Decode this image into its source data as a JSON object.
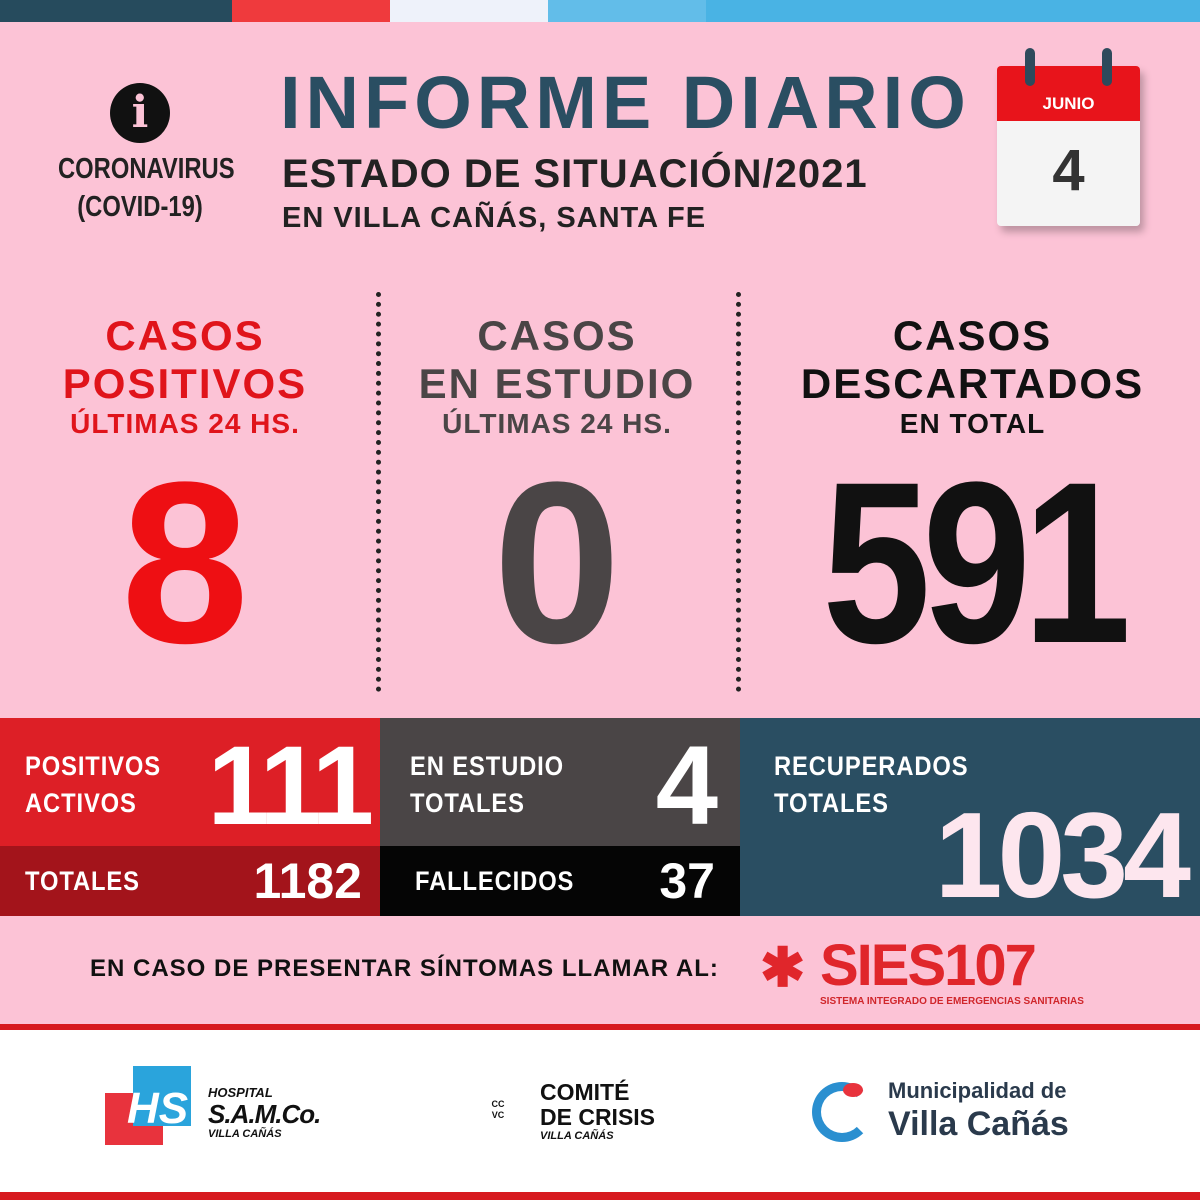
{
  "colors": {
    "top_bar": [
      "#264b5d",
      "#ef3a3d",
      "#eef2fa",
      "#62bde9",
      "#49b3e4"
    ],
    "background": "#fcc3d6",
    "red": "#e0141b",
    "dark": "#4a4546",
    "teal": "#2a4e62"
  },
  "header": {
    "info_icon": "info-icon",
    "badge_line1": "CORONAVIRUS",
    "badge_line2": "(COVID-19)",
    "title": "INFORME DIARIO",
    "subtitle": "ESTADO DE SITUACIÓN/2021",
    "location": "EN VILLA CAÑÁS, SANTA FE",
    "calendar": {
      "month": "JUNIO",
      "day": "4"
    }
  },
  "daily": [
    {
      "line1": "CASOS",
      "line2": "POSITIVOS",
      "line3": "ÚLTIMAS 24 HS.",
      "value": "8"
    },
    {
      "line1": "CASOS",
      "line2": "EN ESTUDIO",
      "line3": "ÚLTIMAS 24 HS.",
      "value": "0"
    },
    {
      "line1": "CASOS",
      "line2": "DESCARTADOS",
      "line3": "EN TOTAL",
      "value": "591"
    }
  ],
  "totals": {
    "positivos_activos": {
      "label1": "POSITIVOS",
      "label2": "ACTIVOS",
      "value": "111"
    },
    "totales": {
      "label": "TOTALES",
      "value": "1182"
    },
    "en_estudio": {
      "label1": "EN ESTUDIO",
      "label2": "TOTALES",
      "value": "4"
    },
    "fallecidos": {
      "label": "FALLECIDOS",
      "value": "37"
    },
    "recuperados": {
      "label1": "RECUPERADOS",
      "label2": "TOTALES",
      "value": "1034"
    }
  },
  "emergency": {
    "text": "EN CASO DE PRESENTAR SÍNTOMAS LLAMAR AL:",
    "logo": "SIES107",
    "logo_sub": "SISTEMA INTEGRADO DE EMERGENCIAS SANITARIAS"
  },
  "footer": {
    "hospital": {
      "mark": "HS",
      "line1": "HOSPITAL",
      "line2": "S.A.M.Co.",
      "line3": "VILLA CAÑÁS"
    },
    "comite": {
      "mark1": "CC",
      "mark2": "VC",
      "line1": "COMITÉ",
      "line2": "DE CRISIS",
      "line3": "VILLA CAÑÁS"
    },
    "municipalidad": {
      "line1": "Municipalidad de",
      "line2": "Villa Cañás"
    }
  }
}
